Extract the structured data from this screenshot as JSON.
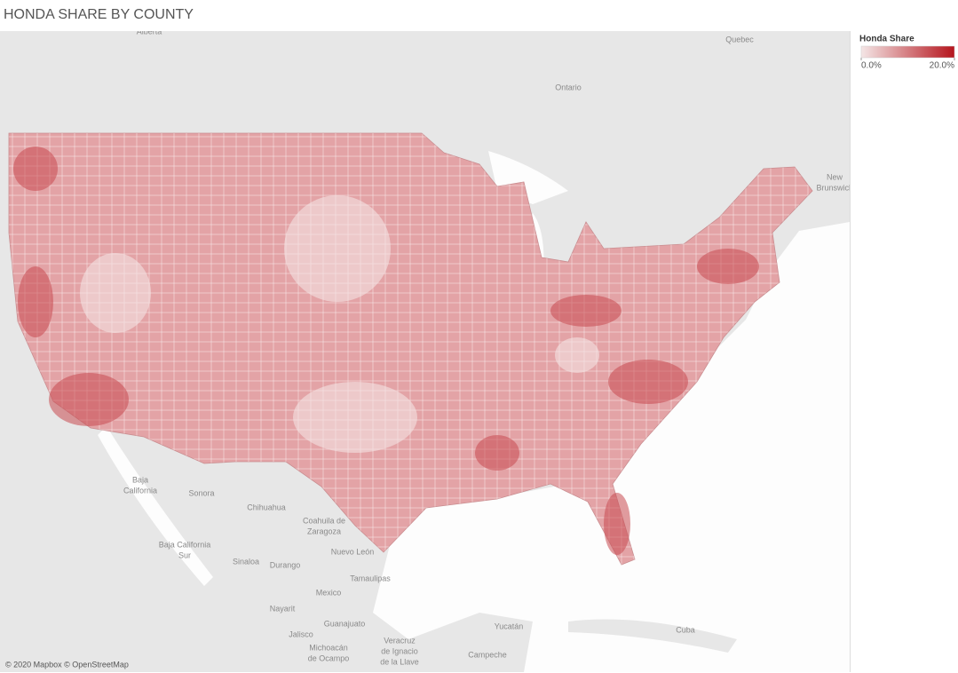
{
  "header": {
    "title": "HONDA SHARE BY COUNTY"
  },
  "legend": {
    "title": "Honda Share",
    "colors": [
      "#f4e6e6",
      "#b5141c"
    ],
    "range": [
      {
        "value": 0,
        "label": "0.0%"
      },
      {
        "value": 20,
        "label": "20.0%"
      }
    ]
  },
  "map": {
    "labels": [
      {
        "lines": [
          "Alberta"
        ]
      },
      {
        "lines": [
          "Quebec"
        ]
      },
      {
        "lines": [
          "Ontario"
        ]
      },
      {
        "lines": [
          "New",
          "Brunswick"
        ]
      },
      {
        "lines": [
          "Baja",
          "California"
        ]
      },
      {
        "lines": [
          "Sonora"
        ]
      },
      {
        "lines": [
          "Chihuahua"
        ]
      },
      {
        "lines": [
          "Coahuila de",
          "Zaragoza"
        ]
      },
      {
        "lines": [
          "Baja California",
          "Sur"
        ]
      },
      {
        "lines": [
          "Sinaloa"
        ]
      },
      {
        "lines": [
          "Durango"
        ]
      },
      {
        "lines": [
          "Nuevo León"
        ]
      },
      {
        "lines": [
          "Tamaulipas"
        ]
      },
      {
        "lines": [
          "Mexico"
        ]
      },
      {
        "lines": [
          "Nayarit"
        ]
      },
      {
        "lines": [
          "Guanajuato"
        ]
      },
      {
        "lines": [
          "Jalisco"
        ]
      },
      {
        "lines": [
          "Michoacán",
          "de Ocampo"
        ]
      },
      {
        "lines": [
          "Veracruz",
          "de Ignacio",
          "de la Llave"
        ]
      },
      {
        "lines": [
          "Yucatán"
        ]
      },
      {
        "lines": [
          "Campeche"
        ]
      },
      {
        "lines": [
          "Cuba"
        ]
      }
    ],
    "attribution": "© 2020 Mapbox © OpenStreetMap"
  }
}
